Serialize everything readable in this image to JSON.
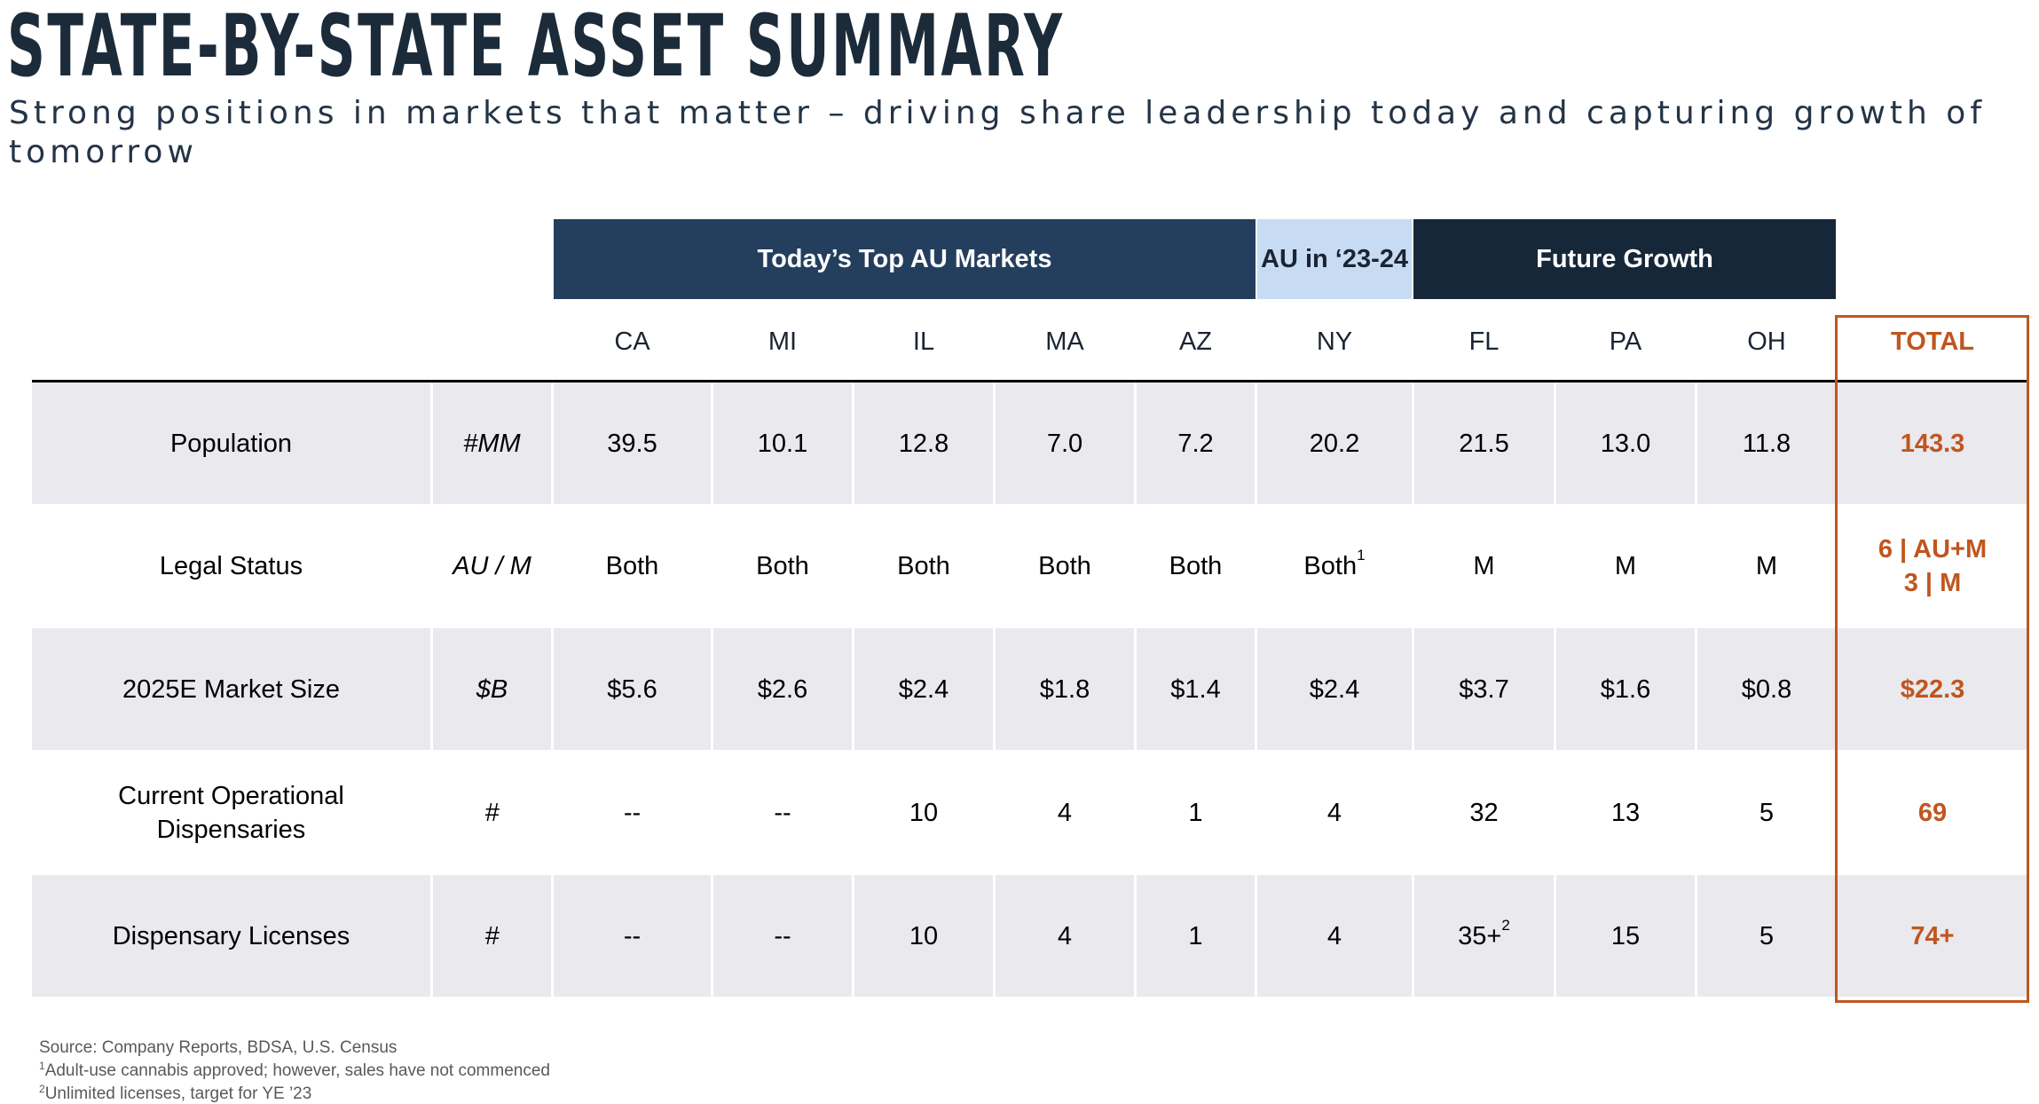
{
  "title": "STATE-BY-STATE ASSET SUMMARY",
  "subtitle": "Strong positions in markets that matter – driving share leadership today and capturing growth of tomorrow",
  "group_headers": {
    "top": "Today’s Top AU Markets",
    "ny": "AU in ‘23-24",
    "future": "Future Growth"
  },
  "columns": [
    "CA",
    "MI",
    "IL",
    "MA",
    "AZ",
    "NY",
    "FL",
    "PA",
    "OH"
  ],
  "total_header": "TOTAL",
  "rows": [
    {
      "label": "Population",
      "unit": "#MM",
      "values": [
        "39.5",
        "10.1",
        "12.8",
        "7.0",
        "7.2",
        "20.2",
        "21.5",
        "13.0",
        "11.8"
      ],
      "total": "143.3"
    },
    {
      "label": "Legal Status",
      "unit": "AU / M",
      "values": [
        "Both",
        "Both",
        "Both",
        "Both",
        "Both",
        "Both",
        "M",
        "M",
        "M"
      ],
      "value_notes": [
        "",
        "",
        "",
        "",
        "",
        "1",
        "",
        "",
        ""
      ],
      "total_line1": "6 | AU+M",
      "total_line2": "3 | M"
    },
    {
      "label": "2025E Market Size",
      "unit": "$B",
      "values": [
        "$5.6",
        "$2.6",
        "$2.4",
        "$1.8",
        "$1.4",
        "$2.4",
        "$3.7",
        "$1.6",
        "$0.8"
      ],
      "total": "$22.3"
    },
    {
      "label_line1": "Current Operational",
      "label_line2": "Dispensaries",
      "unit": "#",
      "values": [
        "--",
        "--",
        "10",
        "4",
        "1",
        "4",
        "32",
        "13",
        "5"
      ],
      "total": "69"
    },
    {
      "label": "Dispensary Licenses",
      "unit": "#",
      "values": [
        "--",
        "--",
        "10",
        "4",
        "1",
        "4",
        "35+",
        "15",
        "5"
      ],
      "value_notes": [
        "",
        "",
        "",
        "",
        "",
        "",
        "2",
        "",
        ""
      ],
      "total": "74+"
    }
  ],
  "footnotes": {
    "source": "Source: Company Reports, BDSA, U.S. Census",
    "note1_mark": "1",
    "note1": "Adult-use cannabis approved; however, sales have not commenced",
    "note2_mark": "2",
    "note2": "Unlimited licenses, target for YE ’23"
  },
  "colors": {
    "title": "#1c2b3a",
    "header_top": "#243f5e",
    "header_ny": "#c7dcf2",
    "header_future": "#17273a",
    "row_shade": "#e9e9ee",
    "total_accent": "#c0561f"
  }
}
